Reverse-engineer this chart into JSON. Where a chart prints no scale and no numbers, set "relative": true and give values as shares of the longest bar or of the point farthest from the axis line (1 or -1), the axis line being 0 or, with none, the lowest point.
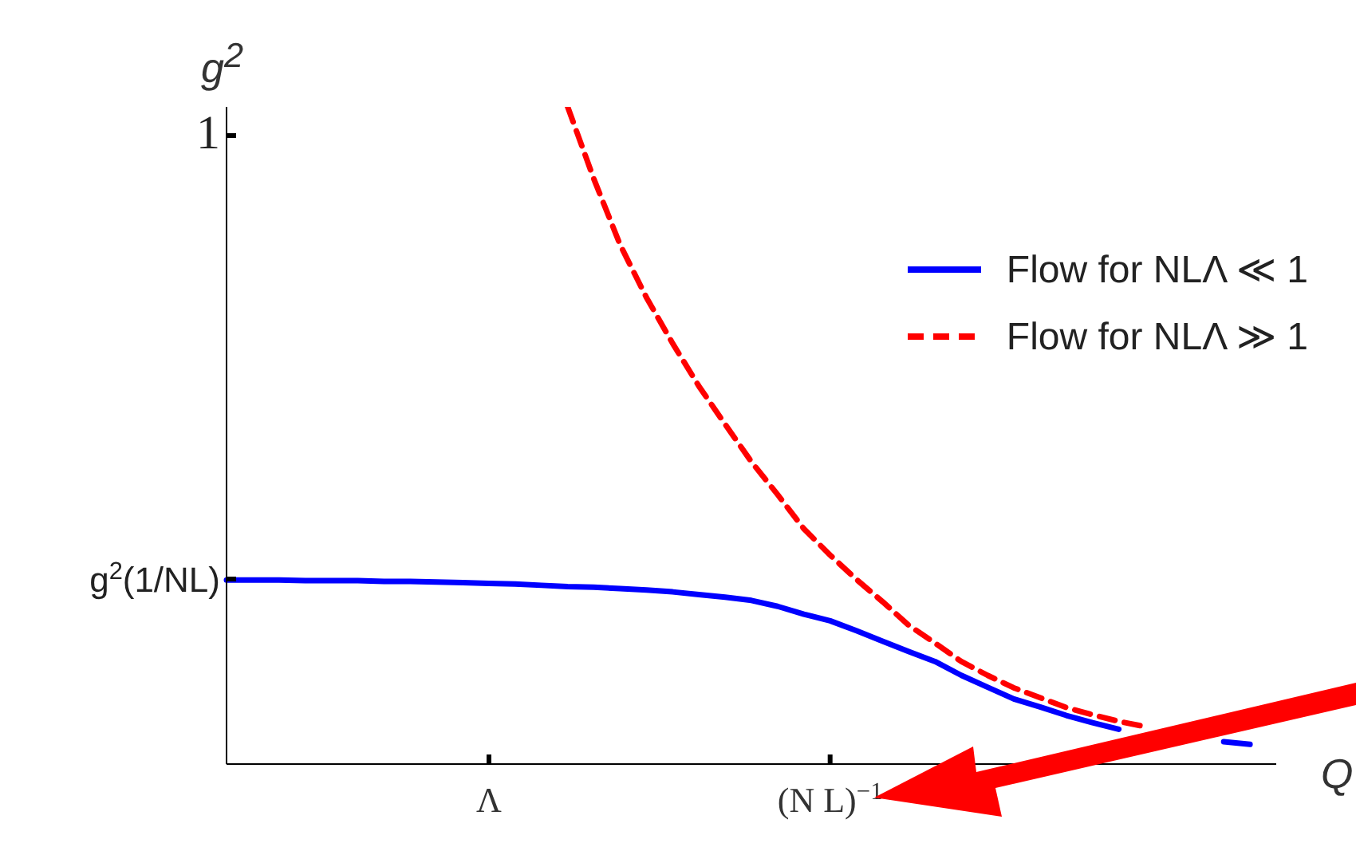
{
  "chart_data": {
    "type": "line",
    "relative": true,
    "xlabel": "Q",
    "ylabel": "g$^{2}$",
    "categories": [
      null,
      null,
      null,
      null,
      null,
      null,
      null,
      null,
      null,
      null,
      "Λ",
      null,
      null,
      null,
      null,
      null,
      null,
      null,
      null,
      null,
      null,
      null,
      null,
      "(N L)$^{−1}$",
      null,
      null,
      null,
      null,
      null,
      null,
      null,
      null,
      null,
      null,
      null,
      null,
      null,
      null,
      null,
      null,
      null
    ],
    "annotations": [
      "1",
      "g$^{2}$(1/NL)"
    ],
    "grid": false,
    "legend": "top right",
    "marker": "none",
    "series": [
      {
        "name": "Flow for NLΛ ≪ 1",
        "color": "#0000ff",
        "line_style": "solid",
        "values": [
          0.28,
          0.28,
          0.28,
          0.279,
          0.279,
          0.279,
          0.278,
          0.278,
          0.277,
          0.276,
          0.275,
          0.274,
          0.272,
          0.27,
          0.269,
          0.267,
          0.265,
          0.262,
          0.258,
          0.254,
          0.249,
          0.24,
          0.228,
          0.218,
          0.203,
          0.187,
          0.171,
          0.156,
          0.135,
          0.117,
          0.099,
          0.087,
          0.074,
          0.063,
          0.053,
          null,
          null,
          null,
          0.034,
          0.03,
          null
        ]
      },
      {
        "name": "Flow for NLΛ ≫ 1",
        "color": "#ff0000",
        "line_style": "dashed",
        "values": [
          null,
          null,
          null,
          null,
          null,
          null,
          null,
          null,
          null,
          null,
          null,
          null,
          null,
          1,
          0.89,
          0.79,
          0.71,
          0.64,
          0.575,
          0.517,
          0.46,
          0.41,
          0.358,
          0.318,
          0.281,
          0.247,
          0.211,
          0.184,
          0.156,
          0.135,
          0.116,
          0.101,
          0.086,
          0.075,
          0.065,
          0.057,
          null,
          null,
          null,
          null,
          null
        ]
      }
    ]
  }
}
